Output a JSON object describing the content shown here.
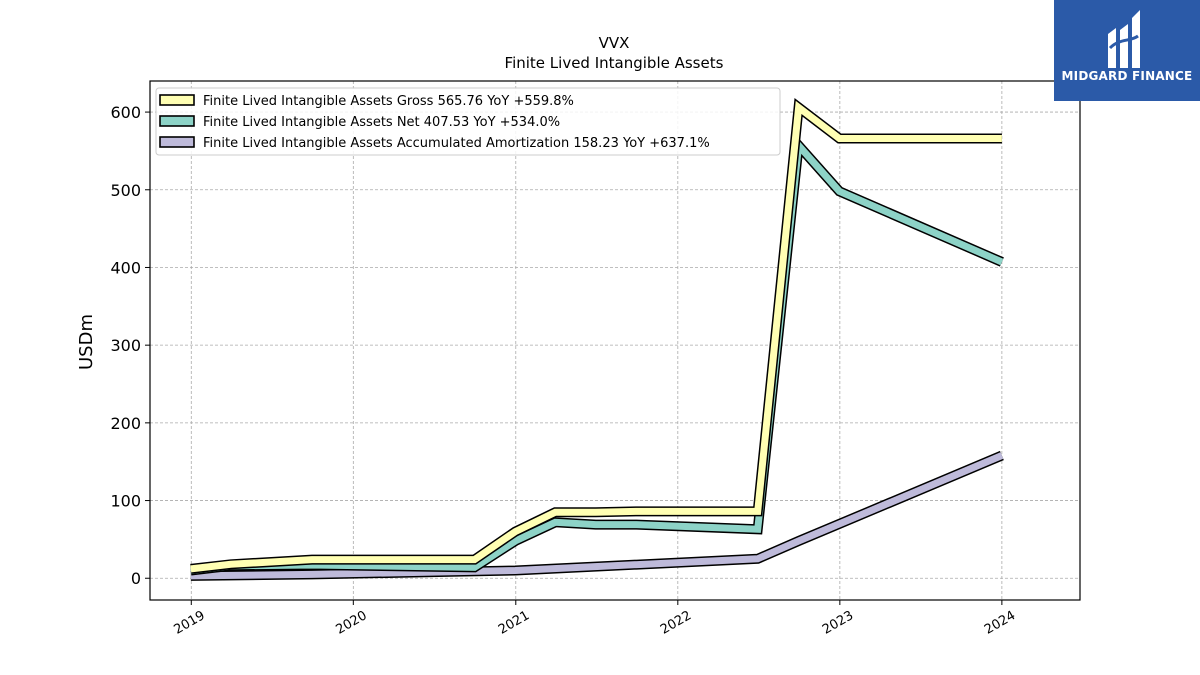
{
  "chart_data": {
    "type": "line",
    "title": "VVX",
    "subtitle": "Finite Lived Intangible Assets",
    "xlabel": "",
    "ylabel": "USDm",
    "x_ticks": [
      "2019",
      "2020",
      "2021",
      "2022",
      "2023",
      "2024"
    ],
    "y_ticks": [
      "0",
      "100",
      "200",
      "300",
      "400",
      "500",
      "600"
    ],
    "ylim": [
      -28,
      640
    ],
    "xlim": [
      "2018-09-30",
      "2024-06-25"
    ],
    "grid": true,
    "legend_position": "top-left",
    "series": [
      {
        "name": "Finite Lived Intangible Assets Gross",
        "legend": "Finite Lived Intangible Assets Gross  565.76 YoY +559.8%",
        "color": "#ffffb3",
        "points": [
          [
            "2018-12-31",
            12
          ],
          [
            "2019-03-31",
            18
          ],
          [
            "2019-09-30",
            24
          ],
          [
            "2020-09-30",
            24
          ],
          [
            "2020-12-31",
            60
          ],
          [
            "2021-03-31",
            85
          ],
          [
            "2021-06-30",
            85
          ],
          [
            "2021-09-30",
            86
          ],
          [
            "2022-06-30",
            86
          ],
          [
            "2022-09-30",
            606
          ],
          [
            "2022-12-31",
            566
          ],
          [
            "2024-01-01",
            566
          ]
        ]
      },
      {
        "name": "Finite Lived Intangible Assets Net",
        "legend": "Finite Lived Intangible Assets Net  407.53 YoY +534.0%",
        "color": "#8dd3c7",
        "points": [
          [
            "2018-12-31",
            10
          ],
          [
            "2019-03-31",
            16
          ],
          [
            "2019-09-30",
            17
          ],
          [
            "2020-09-30",
            14
          ],
          [
            "2020-12-31",
            48
          ],
          [
            "2021-03-31",
            72
          ],
          [
            "2021-06-30",
            69
          ],
          [
            "2021-09-30",
            69
          ],
          [
            "2022-06-30",
            63
          ],
          [
            "2022-09-30",
            557
          ],
          [
            "2022-12-31",
            498
          ],
          [
            "2024-01-01",
            407
          ]
        ]
      },
      {
        "name": "Finite Lived Intangible Assets Accumulated Amortization",
        "legend": "Finite Lived Intangible Assets Accumulated Amortization  158.23 YoY +637.1%",
        "color": "#bebada",
        "points": [
          [
            "2018-12-31",
            3
          ],
          [
            "2019-09-30",
            5
          ],
          [
            "2020-12-31",
            10
          ],
          [
            "2022-06-30",
            25
          ],
          [
            "2022-09-30",
            48
          ],
          [
            "2022-12-31",
            70
          ],
          [
            "2024-01-01",
            158
          ]
        ]
      }
    ]
  },
  "brand": {
    "name": "MIDGARD FINANCE",
    "bg_color": "#2b5aa8",
    "icon": "midgard-logo-icon"
  }
}
